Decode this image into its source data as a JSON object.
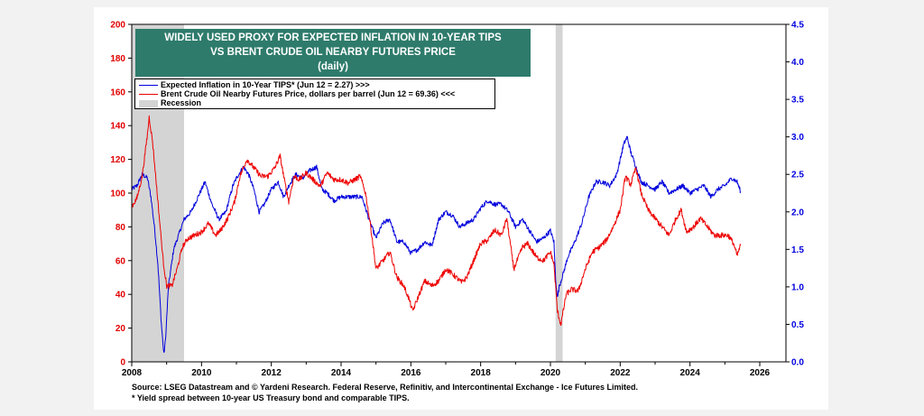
{
  "title_lines": [
    "WIDELY USED PROXY FOR EXPECTED INFLATION IN 10-YEAR TIPS",
    "VS BRENT CRUDE OIL NEARBY FUTURES PRICE",
    "(daily)"
  ],
  "legend": {
    "blue": "Expected Inflation in 10-Year TIPS* (Jun 12 = 2.27) >>>",
    "red": "Brent Crude Oil Nearby Futures Price, dollars per barrel (Jun 12 = 69.36) <<<",
    "recession": "Recession"
  },
  "footnotes": [
    "Source: LSEG Datastream and © Yardeni Research. Federal Reserve, Refinitiv, and Intercontinental Exchange - Ice Futures Limited.",
    "* Yield spread between 10-year US Treasury bond and comparable TIPS."
  ],
  "colors": {
    "blue": "#0000dd",
    "red": "#ee0000",
    "recession": "#d4d4d4",
    "title_bg": "#2e7b6b"
  },
  "chart_data": {
    "type": "line",
    "x_ticks": [
      "2008",
      "2010",
      "2012",
      "2014",
      "2016",
      "2018",
      "2020",
      "2022",
      "2024",
      "2026"
    ],
    "y_left_ticks": [
      "0",
      "20",
      "40",
      "60",
      "80",
      "100",
      "120",
      "140",
      "160",
      "180",
      "200"
    ],
    "y_right_ticks": [
      "0.0",
      "0.5",
      "1.0",
      "1.5",
      "2.0",
      "2.5",
      "3.0",
      "3.5",
      "4.0",
      "4.5"
    ],
    "xlim": [
      2008.0,
      2026.75
    ],
    "y_left_lim": [
      0,
      200
    ],
    "y_right_lim": [
      0,
      4.5
    ],
    "recessions": [
      [
        2008.0,
        2009.5
      ],
      [
        2020.15,
        2020.35
      ]
    ],
    "series": [
      {
        "name": "Expected Inflation in 10-Year TIPS* (Jun 12 = 2.27) >>>",
        "axis": "right",
        "color": "#0000dd",
        "x": [
          2008.0,
          2008.15,
          2008.3,
          2008.45,
          2008.55,
          2008.65,
          2008.75,
          2008.85,
          2008.92,
          2008.97,
          2009.05,
          2009.2,
          2009.35,
          2009.5,
          2009.7,
          2009.9,
          2010.1,
          2010.3,
          2010.5,
          2010.7,
          2010.9,
          2011.0,
          2011.2,
          2011.35,
          2011.5,
          2011.65,
          2011.8,
          2012.0,
          2012.2,
          2012.35,
          2012.5,
          2012.7,
          2012.9,
          2013.1,
          2013.3,
          2013.45,
          2013.6,
          2013.8,
          2014.0,
          2014.2,
          2014.4,
          2014.6,
          2014.8,
          2015.0,
          2015.2,
          2015.4,
          2015.6,
          2015.8,
          2016.0,
          2016.2,
          2016.4,
          2016.6,
          2016.8,
          2017.0,
          2017.2,
          2017.4,
          2017.6,
          2017.8,
          2018.0,
          2018.2,
          2018.4,
          2018.6,
          2018.8,
          2019.0,
          2019.2,
          2019.4,
          2019.6,
          2019.8,
          2020.0,
          2020.1,
          2020.15,
          2020.2,
          2020.25,
          2020.35,
          2020.5,
          2020.7,
          2020.9,
          2021.1,
          2021.3,
          2021.5,
          2021.7,
          2021.9,
          2022.1,
          2022.2,
          2022.3,
          2022.45,
          2022.6,
          2022.8,
          2023.0,
          2023.2,
          2023.4,
          2023.6,
          2023.8,
          2024.0,
          2024.2,
          2024.4,
          2024.6,
          2024.8,
          2025.0,
          2025.2,
          2025.35,
          2025.45
        ],
        "y": [
          2.3,
          2.35,
          2.5,
          2.45,
          2.2,
          1.8,
          1.3,
          0.5,
          0.1,
          0.3,
          1.0,
          1.5,
          1.7,
          1.9,
          2.0,
          2.2,
          2.4,
          2.1,
          1.9,
          2.0,
          2.35,
          2.45,
          2.6,
          2.5,
          2.3,
          2.0,
          2.1,
          2.3,
          2.4,
          2.2,
          2.35,
          2.5,
          2.45,
          2.55,
          2.6,
          2.3,
          2.25,
          2.15,
          2.2,
          2.2,
          2.2,
          2.2,
          1.9,
          1.65,
          1.85,
          1.9,
          1.6,
          1.6,
          1.45,
          1.5,
          1.6,
          1.55,
          1.9,
          2.0,
          1.95,
          1.8,
          1.85,
          1.9,
          2.05,
          2.15,
          2.1,
          2.1,
          2.0,
          1.8,
          1.9,
          1.75,
          1.6,
          1.65,
          1.75,
          1.6,
          1.1,
          0.85,
          1.0,
          1.15,
          1.4,
          1.6,
          1.85,
          2.2,
          2.4,
          2.4,
          2.35,
          2.5,
          2.9,
          3.0,
          2.8,
          2.6,
          2.4,
          2.35,
          2.3,
          2.4,
          2.25,
          2.3,
          2.35,
          2.25,
          2.3,
          2.35,
          2.2,
          2.3,
          2.35,
          2.45,
          2.4,
          2.27
        ]
      },
      {
        "name": "Brent Crude Oil Nearby Futures Price, dollars per barrel (Jun 12 = 69.36) <<<",
        "axis": "left",
        "color": "#ee0000",
        "x": [
          2008.0,
          2008.15,
          2008.3,
          2008.45,
          2008.5,
          2008.6,
          2008.75,
          2008.9,
          2009.0,
          2009.15,
          2009.3,
          2009.45,
          2009.6,
          2009.8,
          2010.0,
          2010.2,
          2010.4,
          2010.55,
          2010.75,
          2010.95,
          2011.1,
          2011.3,
          2011.5,
          2011.7,
          2011.9,
          2012.1,
          2012.25,
          2012.4,
          2012.5,
          2012.65,
          2012.8,
          2013.0,
          2013.2,
          2013.4,
          2013.6,
          2013.8,
          2014.0,
          2014.2,
          2014.4,
          2014.55,
          2014.7,
          2014.85,
          2015.0,
          2015.2,
          2015.4,
          2015.6,
          2015.8,
          2015.95,
          2016.05,
          2016.2,
          2016.4,
          2016.6,
          2016.8,
          2017.0,
          2017.2,
          2017.45,
          2017.6,
          2017.8,
          2018.0,
          2018.2,
          2018.4,
          2018.6,
          2018.75,
          2018.95,
          2019.2,
          2019.35,
          2019.6,
          2019.8,
          2020.0,
          2020.1,
          2020.2,
          2020.3,
          2020.45,
          2020.6,
          2020.8,
          2021.0,
          2021.2,
          2021.4,
          2021.6,
          2021.8,
          2022.0,
          2022.15,
          2022.3,
          2022.45,
          2022.6,
          2022.8,
          2023.0,
          2023.2,
          2023.4,
          2023.6,
          2023.75,
          2023.9,
          2024.1,
          2024.3,
          2024.5,
          2024.7,
          2024.9,
          2025.1,
          2025.25,
          2025.35,
          2025.45
        ],
        "y": [
          92,
          97,
          110,
          135,
          145,
          130,
          95,
          60,
          45,
          45,
          55,
          68,
          73,
          75,
          77,
          82,
          75,
          78,
          85,
          95,
          110,
          120,
          115,
          110,
          110,
          115,
          122,
          105,
          95,
          110,
          108,
          112,
          108,
          104,
          112,
          108,
          108,
          106,
          108,
          110,
          100,
          80,
          55,
          60,
          65,
          50,
          45,
          37,
          30,
          38,
          48,
          45,
          48,
          55,
          52,
          47,
          50,
          60,
          70,
          72,
          78,
          75,
          85,
          55,
          68,
          70,
          62,
          60,
          65,
          58,
          30,
          22,
          40,
          43,
          42,
          55,
          65,
          68,
          72,
          80,
          90,
          110,
          105,
          115,
          100,
          90,
          85,
          80,
          75,
          85,
          90,
          77,
          80,
          85,
          80,
          75,
          75,
          75,
          70,
          63,
          69
        ]
      }
    ]
  }
}
